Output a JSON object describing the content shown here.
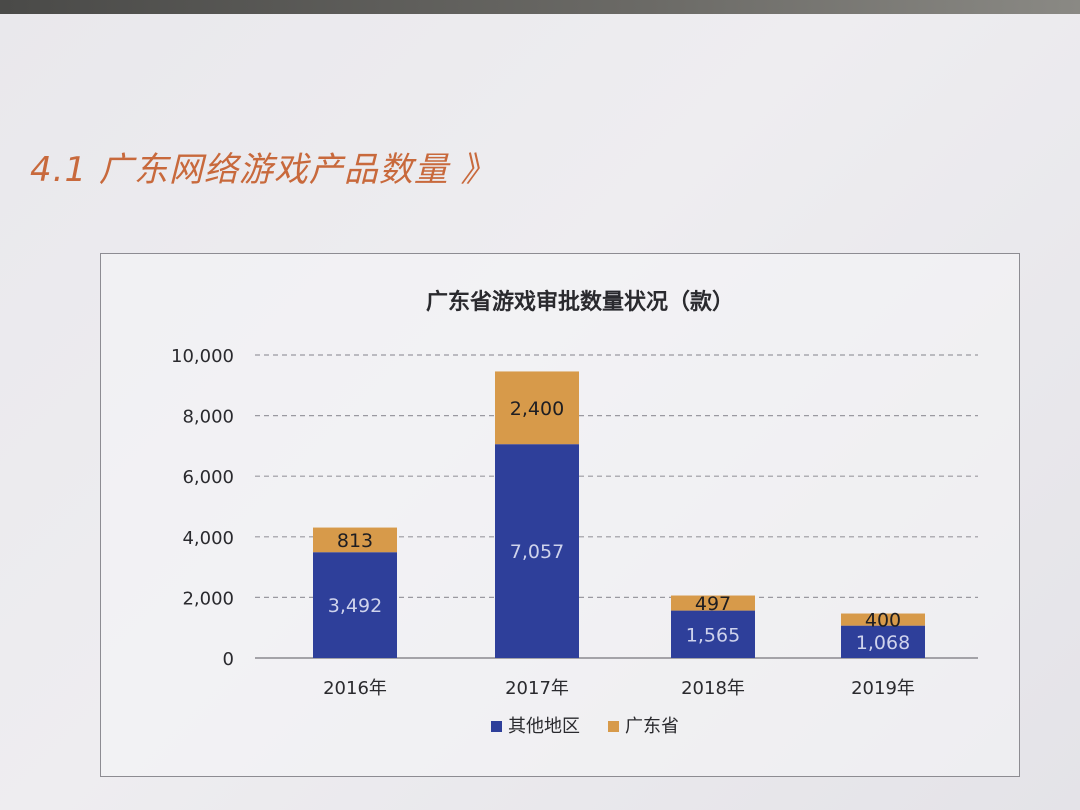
{
  "section": {
    "title": "4.1 广东网络游戏产品数量 》"
  },
  "chart_data": {
    "type": "bar",
    "stacked": true,
    "title": "广东省游戏审批数量状况（款）",
    "categories": [
      "2016年",
      "2017年",
      "2018年",
      "2019年"
    ],
    "series": [
      {
        "name": "其他地区",
        "values": [
          3492,
          7057,
          1565,
          1068
        ],
        "color": "#2e3f9a",
        "labels": [
          "3,492",
          "7,057",
          "1,565",
          "1,068"
        ]
      },
      {
        "name": "广东省",
        "values": [
          813,
          2400,
          497,
          400
        ],
        "color": "#d79a4a",
        "labels": [
          "813",
          "2,400",
          "497",
          "400"
        ]
      }
    ],
    "ylim": [
      0,
      10000
    ],
    "yticks": [
      0,
      2000,
      4000,
      6000,
      8000,
      10000
    ],
    "ytick_labels": [
      "0",
      "2,000",
      "4,000",
      "6,000",
      "8,000",
      "10,000"
    ],
    "grid": true,
    "legend": "bottom"
  }
}
